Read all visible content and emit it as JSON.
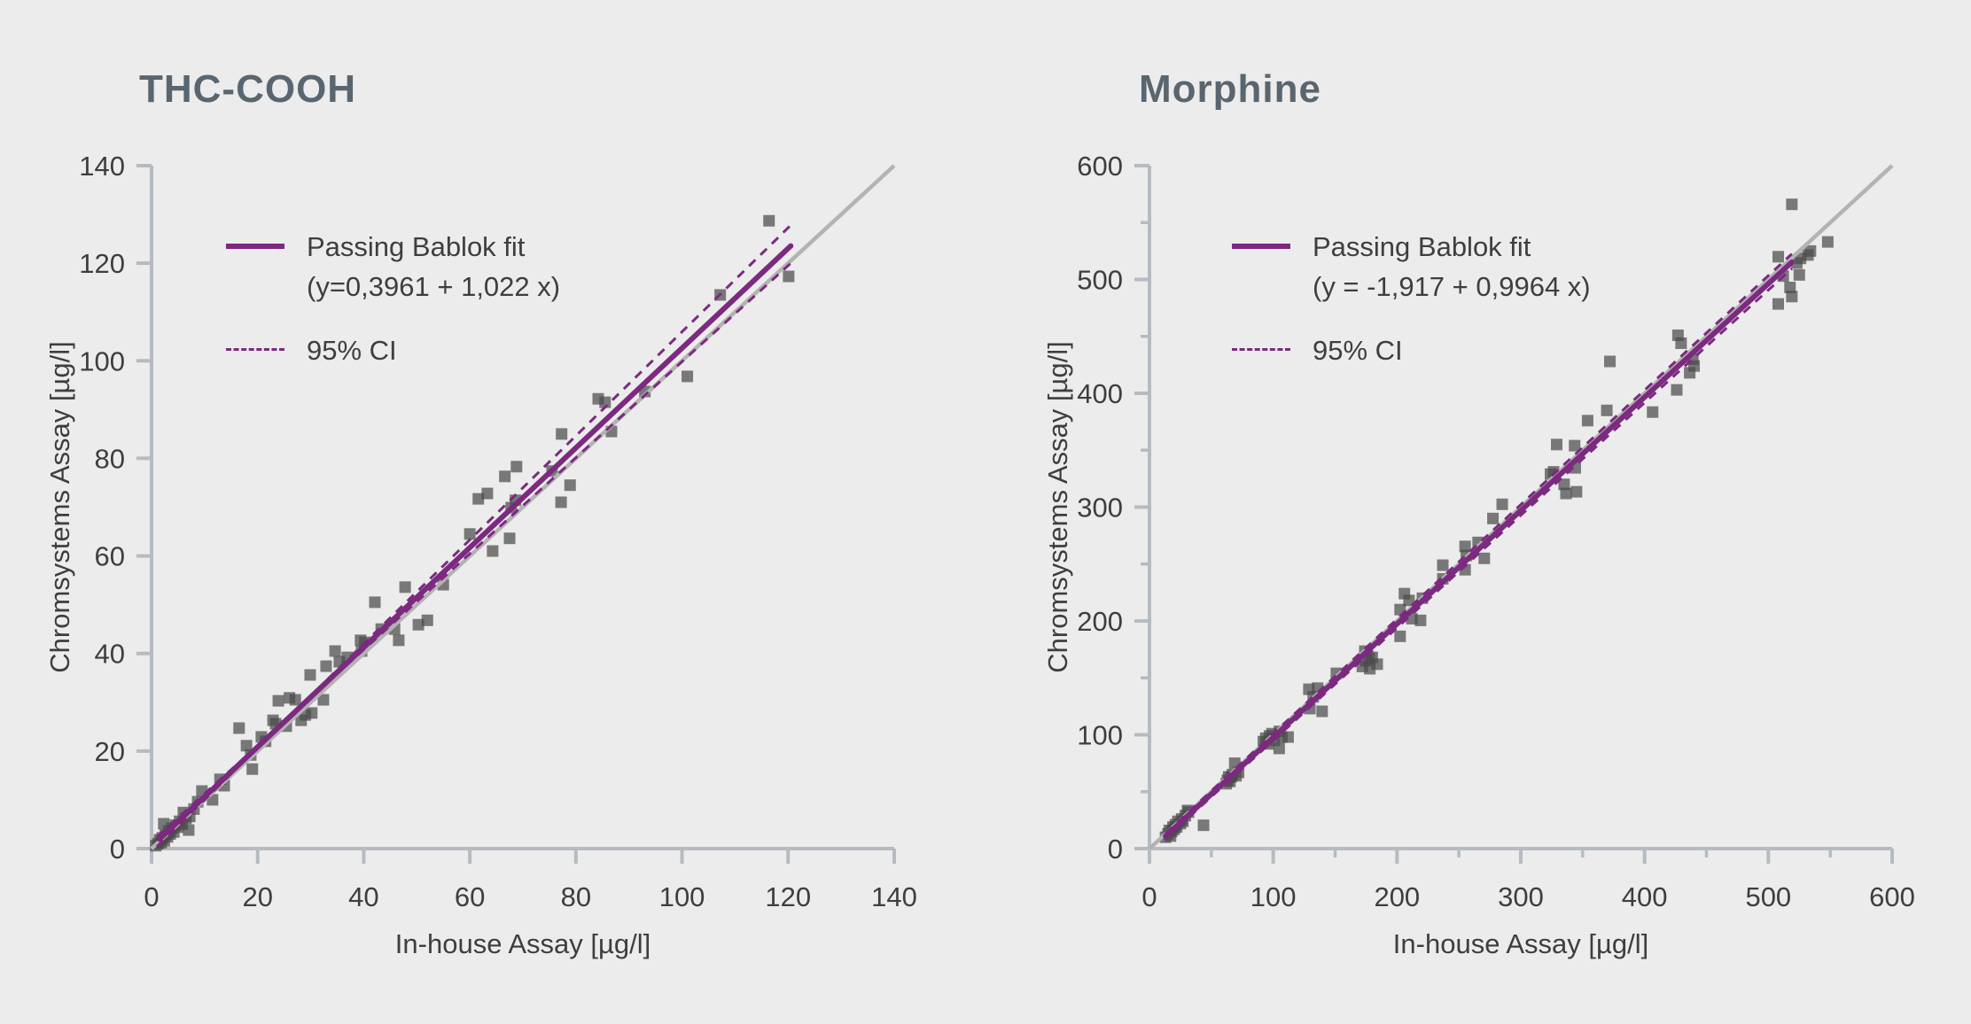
{
  "page": {
    "background_color": "#ececec",
    "title_color": "#59666f",
    "text_color": "#3c3e40",
    "axis_color": "#b5bbc0",
    "identity_line_color": "#b3b3b3",
    "fit_line_color": "#7c2a80",
    "point_color": "#4b4b4b"
  },
  "chart_data": [
    {
      "type": "scatter",
      "title": "THC-COOH",
      "xlabel": "In-house Assay [µg/l]",
      "ylabel": "Chromsystems Assay [µg/l]",
      "xlim": [
        0,
        140
      ],
      "ylim": [
        0,
        140
      ],
      "xticks": [
        0,
        20,
        40,
        60,
        80,
        100,
        120,
        140
      ],
      "yticks": [
        0,
        20,
        40,
        60,
        80,
        100,
        120,
        140
      ],
      "minor_tick_step": null,
      "legend": {
        "fit_label": "Passing Bablok fit",
        "fit_equation": "(y=0,3961 + 1,022 x)",
        "ci_label": "95% CI"
      },
      "fit": {
        "intercept": 0.3961,
        "slope": 1.022,
        "x_start": 1.5,
        "x_end": 120.5
      },
      "ci_upper": {
        "x1": 1.0,
        "y1": 0.4,
        "x2": 120.5,
        "y2": 127.8
      },
      "ci_lower": {
        "x1": 1.0,
        "y1": 2.4,
        "x2": 120.5,
        "y2": 120.0
      },
      "identity_line": {
        "x1": 0,
        "y1": 0,
        "x2": 140,
        "y2": 140
      },
      "points": [
        [
          0.8,
          0.6
        ],
        [
          1.2,
          1.0
        ],
        [
          1.5,
          1.8
        ],
        [
          1.8,
          1.2
        ],
        [
          2.0,
          2.2
        ],
        [
          2.3,
          5.1
        ],
        [
          2.4,
          1.6
        ],
        [
          2.6,
          2.8
        ],
        [
          3.0,
          2.4
        ],
        [
          3.2,
          3.6
        ],
        [
          3.5,
          3.0
        ],
        [
          3.8,
          4.2
        ],
        [
          4.2,
          3.4
        ],
        [
          4.5,
          4.8
        ],
        [
          5.0,
          4.4
        ],
        [
          5.3,
          5.6
        ],
        [
          5.8,
          5.0
        ],
        [
          6.0,
          7.4
        ],
        [
          6.5,
          6.2
        ],
        [
          7.0,
          3.8
        ],
        [
          7.2,
          6.6
        ],
        [
          8.0,
          8.1
        ],
        [
          8.7,
          9.6
        ],
        [
          9.5,
          11.8
        ],
        [
          11.5,
          10.0
        ],
        [
          12.9,
          14.2
        ],
        [
          13.7,
          12.9
        ],
        [
          16.5,
          24.7
        ],
        [
          17.9,
          21.1
        ],
        [
          18.7,
          19.2
        ],
        [
          19.0,
          16.3
        ],
        [
          20.7,
          22.9
        ],
        [
          21.5,
          22.0
        ],
        [
          22.9,
          26.3
        ],
        [
          23.4,
          25.6
        ],
        [
          23.9,
          30.3
        ],
        [
          25.4,
          25.1
        ],
        [
          26.0,
          30.9
        ],
        [
          27.1,
          30.5
        ],
        [
          28.2,
          26.3
        ],
        [
          29.0,
          27.4
        ],
        [
          29.9,
          35.6
        ],
        [
          30.2,
          27.8
        ],
        [
          32.4,
          30.5
        ],
        [
          32.9,
          37.4
        ],
        [
          34.6,
          40.5
        ],
        [
          35.4,
          38.3
        ],
        [
          36.9,
          39.2
        ],
        [
          39.4,
          42.7
        ],
        [
          39.6,
          40.5
        ],
        [
          40.2,
          42.3
        ],
        [
          42.1,
          50.5
        ],
        [
          43.3,
          45.0
        ],
        [
          45.8,
          45.0
        ],
        [
          46.6,
          42.7
        ],
        [
          47.8,
          53.6
        ],
        [
          50.3,
          45.9
        ],
        [
          52.0,
          46.8
        ],
        [
          55.0,
          54.1
        ],
        [
          60.0,
          64.5
        ],
        [
          61.6,
          71.7
        ],
        [
          63.3,
          72.8
        ],
        [
          64.3,
          61.0
        ],
        [
          66.6,
          76.3
        ],
        [
          67.5,
          63.6
        ],
        [
          67.8,
          69.9
        ],
        [
          68.6,
          71.4
        ],
        [
          68.8,
          78.3
        ],
        [
          75.5,
          77.4
        ],
        [
          77.2,
          71.0
        ],
        [
          77.3,
          85.0
        ],
        [
          78.9,
          74.5
        ],
        [
          84.2,
          92.2
        ],
        [
          85.5,
          91.5
        ],
        [
          86.7,
          85.5
        ],
        [
          93.0,
          93.7
        ],
        [
          101.0,
          96.8
        ],
        [
          107.2,
          113.5
        ],
        [
          116.4,
          128.7
        ],
        [
          120.1,
          117.3
        ]
      ]
    },
    {
      "type": "scatter",
      "title": "Morphine",
      "xlabel": "In-house Assay [µg/l]",
      "ylabel": "Chromsystems Assay [µg/l]",
      "xlim": [
        0,
        600
      ],
      "ylim": [
        0,
        600
      ],
      "xticks": [
        0,
        100,
        200,
        300,
        400,
        500,
        600
      ],
      "yticks": [
        0,
        100,
        200,
        300,
        400,
        500,
        600
      ],
      "minor_tick_step": 50,
      "legend": {
        "fit_label": "Passing Bablok fit",
        "fit_equation": "(y = -1,917 + 0,9964 x)",
        "ci_label": "95% CI"
      },
      "fit": {
        "intercept": -1.917,
        "slope": 0.9964,
        "x_start": 13,
        "x_end": 519
      },
      "ci_upper": {
        "x1": 13,
        "y1": 13.5,
        "x2": 519,
        "y2": 522.5
      },
      "ci_lower": {
        "x1": 13,
        "y1": 9.0,
        "x2": 519,
        "y2": 509.5
      },
      "identity_line": {
        "x1": 0,
        "y1": 0,
        "x2": 600,
        "y2": 600
      },
      "points": [
        [
          13,
          10
        ],
        [
          15,
          13
        ],
        [
          16,
          16
        ],
        [
          17,
          11
        ],
        [
          18,
          15
        ],
        [
          19,
          19
        ],
        [
          20,
          17
        ],
        [
          21,
          21
        ],
        [
          22,
          19
        ],
        [
          23,
          24
        ],
        [
          25,
          22
        ],
        [
          26,
          26
        ],
        [
          27,
          24
        ],
        [
          29,
          29
        ],
        [
          30.8,
          33.5
        ],
        [
          31.5,
          32
        ],
        [
          43.7,
          20.5
        ],
        [
          62,
          57
        ],
        [
          63,
          60
        ],
        [
          64,
          63
        ],
        [
          65,
          59
        ],
        [
          66,
          63
        ],
        [
          67,
          65
        ],
        [
          68.9,
          75
        ],
        [
          70,
          64
        ],
        [
          72,
          67
        ],
        [
          92,
          94
        ],
        [
          94,
          97
        ],
        [
          96,
          92
        ],
        [
          97,
          99
        ],
        [
          99,
          101
        ],
        [
          101,
          95
        ],
        [
          104.8,
          88
        ],
        [
          105,
          103
        ],
        [
          107,
          98
        ],
        [
          112,
          98
        ],
        [
          128.8,
          140
        ],
        [
          129.6,
          123
        ],
        [
          132.3,
          133.3
        ],
        [
          135.9,
          141
        ],
        [
          139.5,
          120.6
        ],
        [
          151,
          154
        ],
        [
          172,
          160
        ],
        [
          174,
          173.5
        ],
        [
          175,
          165
        ],
        [
          177.5,
          167
        ],
        [
          178,
          158
        ],
        [
          180,
          168
        ],
        [
          184,
          162
        ],
        [
          202.5,
          210
        ],
        [
          202.5,
          186.5
        ],
        [
          206,
          224
        ],
        [
          209.7,
          218
        ],
        [
          212,
          202
        ],
        [
          219,
          200.5
        ],
        [
          220.5,
          220
        ],
        [
          237,
          249
        ],
        [
          237,
          237
        ],
        [
          255,
          265.5
        ],
        [
          255,
          245
        ],
        [
          256,
          257.5
        ],
        [
          265.5,
          269
        ],
        [
          270.5,
          255
        ],
        [
          277.5,
          290
        ],
        [
          285,
          302.5
        ],
        [
          324,
          329
        ],
        [
          326.5,
          331
        ],
        [
          329,
          355
        ],
        [
          335,
          320
        ],
        [
          336.5,
          312
        ],
        [
          343.5,
          354
        ],
        [
          344,
          334.5
        ],
        [
          345,
          313.5
        ],
        [
          354,
          376
        ],
        [
          369.5,
          385
        ],
        [
          372,
          428
        ],
        [
          406.5,
          383.5
        ],
        [
          426,
          403
        ],
        [
          427,
          451
        ],
        [
          429.5,
          444
        ],
        [
          436.5,
          418
        ],
        [
          439,
          430
        ],
        [
          440,
          424
        ],
        [
          508,
          520
        ],
        [
          508,
          478.5
        ],
        [
          512,
          503
        ],
        [
          517.5,
          493
        ],
        [
          519,
          566
        ],
        [
          519,
          485
        ],
        [
          523,
          514.5
        ],
        [
          525,
          504
        ],
        [
          526,
          518.5
        ],
        [
          532,
          521.5
        ],
        [
          534,
          525
        ],
        [
          548,
          533
        ]
      ]
    }
  ]
}
